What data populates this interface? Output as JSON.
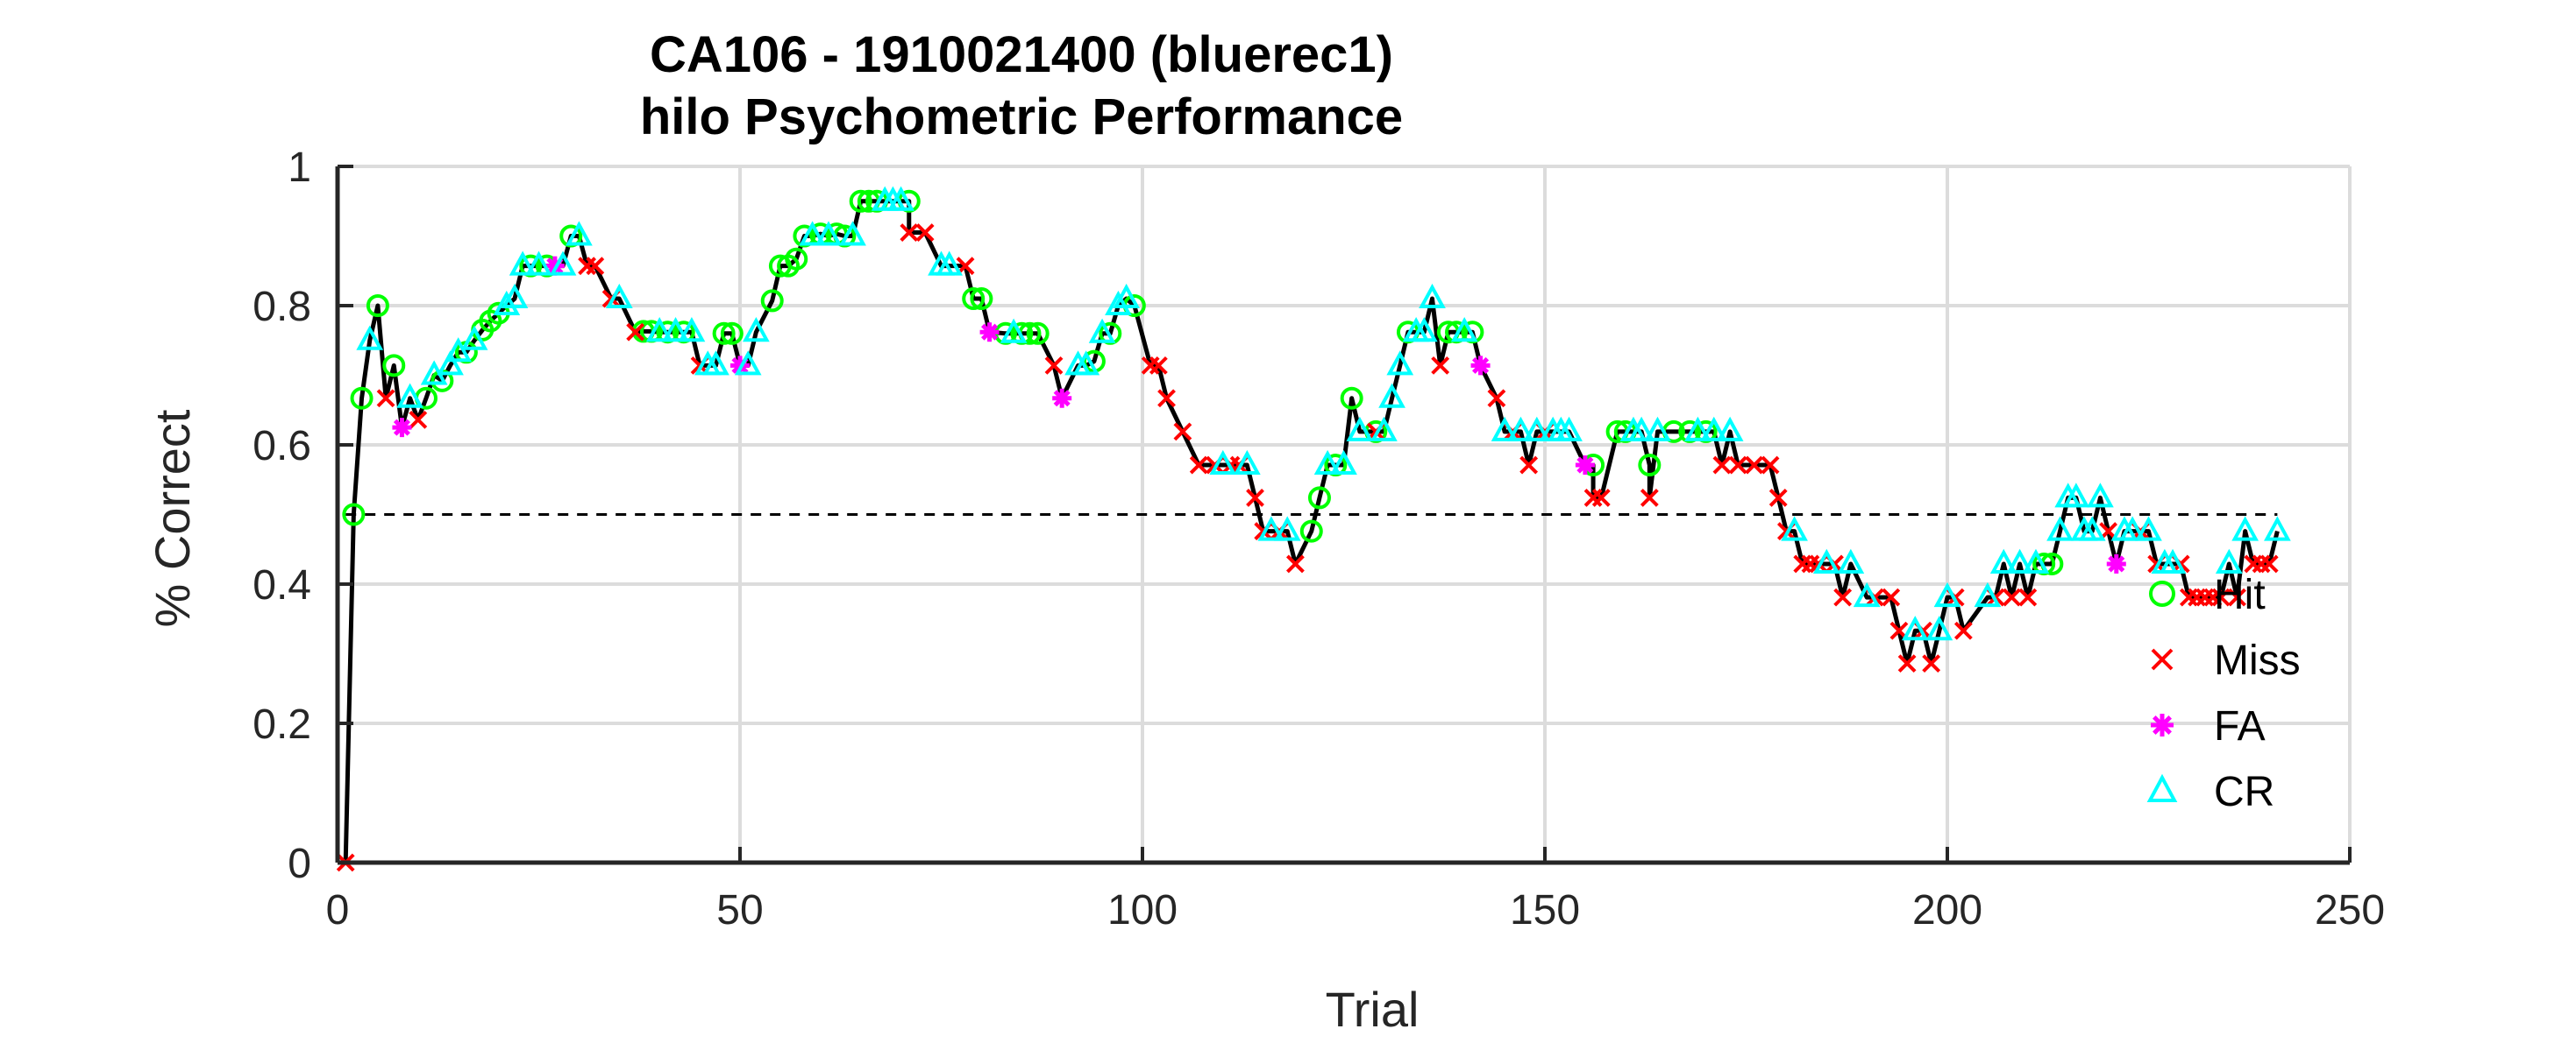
{
  "chart_data": {
    "type": "line",
    "title_line1": "CA106 - 1910021400 (bluerec1)",
    "title_line2": "hilo Psychometric Performance",
    "xlabel": "Trial",
    "ylabel": "% Correct",
    "xlim": [
      0,
      250
    ],
    "ylim": [
      0,
      1
    ],
    "xticks": [
      "0",
      "50",
      "100",
      "150",
      "200",
      "250"
    ],
    "yticks": [
      "0",
      "0.2",
      "0.4",
      "0.6",
      "0.8",
      "1"
    ],
    "grid": true,
    "chance_level": 0.5,
    "legend_position": "bottom-right",
    "legend": [
      {
        "name": "Hit",
        "color": "#00ff00",
        "marker": "circle"
      },
      {
        "name": "Miss",
        "color": "#ff0000",
        "marker": "x"
      },
      {
        "name": "FA",
        "color": "#ff00ff",
        "marker": "asterisk"
      },
      {
        "name": "CR",
        "color": "#00ffff",
        "marker": "triangle"
      }
    ],
    "line_color": "#000000",
    "series": [
      {
        "name": "Hit",
        "x": [
          2,
          3,
          5,
          7,
          11,
          13,
          16,
          18,
          19,
          20,
          24,
          26,
          29,
          38,
          39,
          41,
          43,
          48,
          49,
          54,
          55,
          56,
          57,
          58,
          60,
          62,
          63,
          65,
          66,
          67,
          71,
          79,
          80,
          83,
          85,
          86,
          87,
          94,
          96,
          99,
          121,
          122,
          124,
          126,
          129,
          133,
          138,
          139,
          141,
          156,
          159,
          160,
          163,
          166,
          168,
          170,
          212,
          213
        ],
        "y": [
          0.5,
          0.667,
          0.8,
          0.714,
          0.667,
          0.692,
          0.733,
          0.765,
          0.778,
          0.789,
          0.857,
          0.857,
          0.9,
          0.763,
          0.763,
          0.762,
          0.762,
          0.76,
          0.76,
          0.807,
          0.857,
          0.857,
          0.867,
          0.9,
          0.903,
          0.903,
          0.9,
          0.95,
          0.95,
          0.95,
          0.95,
          0.81,
          0.81,
          0.76,
          0.76,
          0.76,
          0.76,
          0.72,
          0.76,
          0.8,
          0.476,
          0.524,
          0.571,
          0.667,
          0.619,
          0.762,
          0.762,
          0.762,
          0.762,
          0.571,
          0.619,
          0.619,
          0.571,
          0.619,
          0.619,
          0.619,
          0.429,
          0.429
        ]
      },
      {
        "name": "Miss",
        "x": [
          1,
          6,
          10,
          31,
          32,
          34,
          37,
          45,
          71,
          73,
          78,
          89,
          101,
          102,
          103,
          105,
          107,
          109,
          111,
          112,
          114,
          115,
          117,
          119,
          129,
          137,
          144,
          146,
          148,
          150,
          156,
          157,
          163,
          172,
          174,
          176,
          178,
          179,
          180,
          182,
          183,
          184,
          186,
          187,
          191,
          193,
          194,
          195,
          197,
          198,
          201,
          202,
          206,
          208,
          210,
          220,
          224,
          226,
          229,
          230,
          231,
          232,
          233,
          234,
          236,
          238,
          239,
          240
        ],
        "y": [
          0,
          0.667,
          0.636,
          0.857,
          0.857,
          0.81,
          0.762,
          0.714,
          0.905,
          0.905,
          0.857,
          0.714,
          0.714,
          0.714,
          0.667,
          0.619,
          0.571,
          0.571,
          0.571,
          0.571,
          0.524,
          0.476,
          0.476,
          0.429,
          0.619,
          0.714,
          0.667,
          0.619,
          0.571,
          0.619,
          0.524,
          0.524,
          0.524,
          0.571,
          0.571,
          0.571,
          0.571,
          0.524,
          0.476,
          0.429,
          0.429,
          0.429,
          0.429,
          0.381,
          0.381,
          0.381,
          0.333,
          0.286,
          0.333,
          0.286,
          0.381,
          0.333,
          0.381,
          0.381,
          0.381,
          0.476,
          0.476,
          0.429,
          0.429,
          0.381,
          0.381,
          0.381,
          0.381,
          0.381,
          0.381,
          0.429,
          0.429,
          0.429
        ]
      },
      {
        "name": "FA",
        "x": [
          8,
          27,
          50,
          81,
          90,
          142,
          155,
          221
        ],
        "y": [
          0.625,
          0.857,
          0.714,
          0.762,
          0.667,
          0.714,
          0.571,
          0.429
        ]
      },
      {
        "name": "CR",
        "x": [
          4,
          9,
          12,
          14,
          15,
          17,
          21,
          22,
          23,
          25,
          28,
          30,
          35,
          40,
          42,
          44,
          46,
          47,
          51,
          52,
          59,
          61,
          64,
          68,
          69,
          70,
          75,
          76,
          84,
          92,
          93,
          95,
          97,
          98,
          110,
          113,
          116,
          118,
          123,
          125,
          127,
          130,
          131,
          132,
          134,
          135,
          136,
          140,
          145,
          147,
          149,
          151,
          152,
          153,
          161,
          162,
          164,
          169,
          171,
          173,
          181,
          185,
          188,
          190,
          196,
          199,
          200,
          205,
          207,
          209,
          211,
          214,
          215,
          216,
          217,
          218,
          219,
          222,
          223,
          225,
          227,
          228,
          235,
          237,
          241
        ],
        "y": [
          0.75,
          0.667,
          0.7,
          0.714,
          0.733,
          0.75,
          0.8,
          0.81,
          0.857,
          0.857,
          0.857,
          0.9,
          0.81,
          0.762,
          0.762,
          0.762,
          0.714,
          0.714,
          0.714,
          0.762,
          0.9,
          0.9,
          0.9,
          0.95,
          0.95,
          0.95,
          0.857,
          0.857,
          0.76,
          0.714,
          0.714,
          0.76,
          0.8,
          0.81,
          0.571,
          0.571,
          0.476,
          0.476,
          0.571,
          0.571,
          0.619,
          0.619,
          0.667,
          0.714,
          0.762,
          0.762,
          0.81,
          0.762,
          0.619,
          0.619,
          0.619,
          0.619,
          0.619,
          0.619,
          0.619,
          0.619,
          0.619,
          0.619,
          0.619,
          0.619,
          0.476,
          0.429,
          0.429,
          0.381,
          0.333,
          0.333,
          0.381,
          0.381,
          0.429,
          0.429,
          0.429,
          0.476,
          0.524,
          0.524,
          0.476,
          0.476,
          0.524,
          0.476,
          0.476,
          0.476,
          0.429,
          0.429,
          0.429,
          0.476,
          0.476
        ]
      }
    ]
  }
}
